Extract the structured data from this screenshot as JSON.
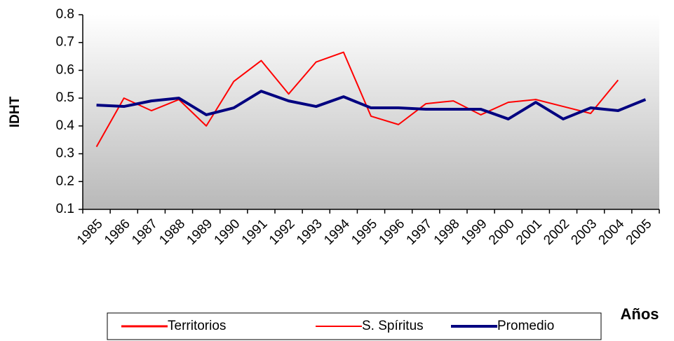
{
  "chart_data": {
    "type": "line",
    "y_label": "IDHT",
    "x_label": "Años",
    "categories": [
      "1985",
      "1986",
      "1987",
      "1988",
      "1989",
      "1990",
      "1991",
      "1992",
      "1993",
      "1994",
      "1995",
      "1996",
      "1997",
      "1998",
      "1999",
      "2000",
      "2001",
      "2002",
      "2003",
      "2004",
      "2005"
    ],
    "series": [
      {
        "name": "Territorios",
        "color": "#ff0000",
        "width": 3,
        "values": [
          null,
          null,
          null,
          null,
          null,
          null,
          null,
          null,
          null,
          null,
          null,
          null,
          null,
          null,
          null,
          null,
          null,
          null,
          null,
          null,
          null
        ]
      },
      {
        "name": "S. Spíritus",
        "color": "#ff0000",
        "width": 2,
        "values": [
          0.325,
          0.5,
          0.455,
          0.495,
          0.4,
          0.56,
          0.635,
          0.515,
          0.63,
          0.665,
          0.435,
          0.405,
          0.48,
          0.49,
          0.44,
          0.485,
          0.495,
          0.47,
          0.445,
          0.565,
          null
        ]
      },
      {
        "name": "Promedio",
        "color": "#000080",
        "width": 4,
        "values": [
          0.475,
          0.47,
          0.49,
          0.5,
          0.44,
          0.465,
          0.525,
          0.49,
          0.47,
          0.505,
          0.465,
          0.465,
          0.46,
          0.46,
          0.46,
          0.425,
          0.485,
          0.425,
          0.465,
          0.455,
          0.495
        ]
      }
    ],
    "ylim": [
      0.1,
      0.8
    ],
    "yticks": [
      0.1,
      0.2,
      0.3,
      0.4,
      0.5,
      0.6,
      0.7,
      0.8
    ],
    "legend": "bottom"
  }
}
